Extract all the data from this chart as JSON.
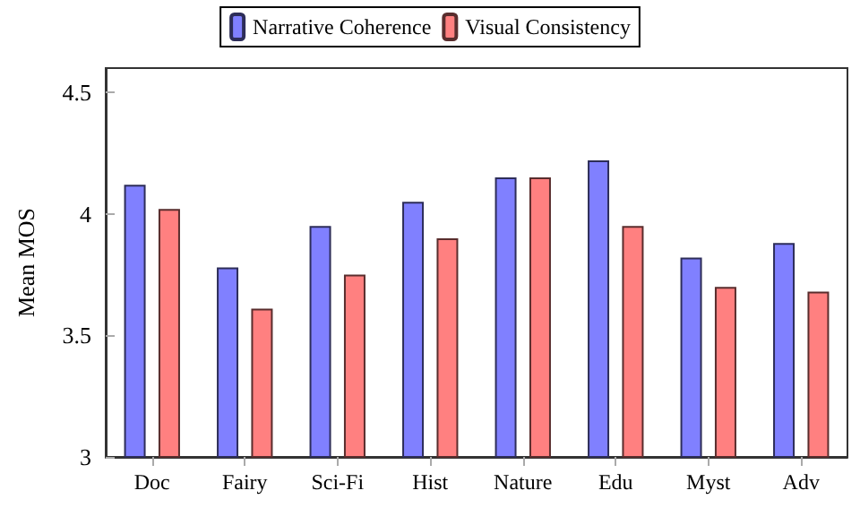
{
  "chart_data": {
    "type": "bar",
    "ylabel": "Mean MOS",
    "categories": [
      "Doc",
      "Fairy",
      "Sci-Fi",
      "Hist",
      "Nature",
      "Edu",
      "Myst",
      "Adv"
    ],
    "series": [
      {
        "name": "Narrative Coherence",
        "color": "#8080ff",
        "values": [
          4.12,
          3.78,
          3.95,
          4.05,
          4.15,
          4.22,
          3.82,
          3.88
        ]
      },
      {
        "name": "Visual Consistency",
        "color": "#ff8080",
        "values": [
          4.02,
          3.61,
          3.75,
          3.9,
          4.15,
          3.95,
          3.7,
          3.68
        ]
      }
    ],
    "ylim": [
      3,
      4.6
    ],
    "yticks": [
      3,
      3.5,
      4,
      4.5
    ],
    "grid": false,
    "legend": "top"
  }
}
